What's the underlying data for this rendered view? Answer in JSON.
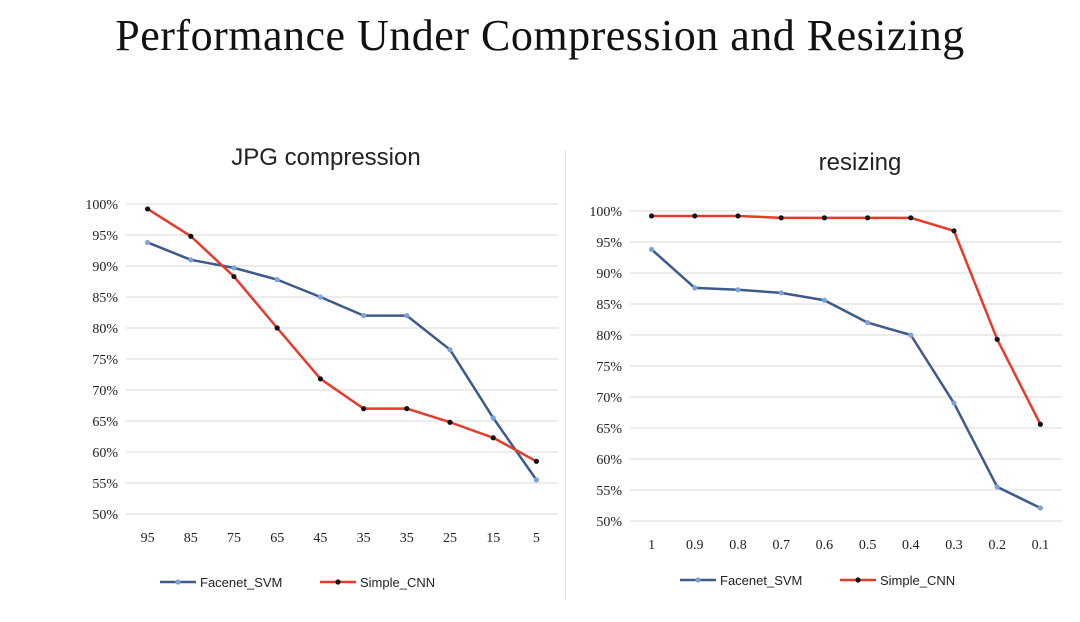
{
  "page": {
    "title": "Performance Under Compression and Resizing"
  },
  "chart_data": [
    {
      "type": "line",
      "title": "JPG compression",
      "xlabel": "",
      "ylabel": "",
      "categories": [
        "95",
        "85",
        "75",
        "65",
        "45",
        "35",
        "35",
        "25",
        "15",
        "5"
      ],
      "yticks": [
        "50%",
        "55%",
        "60%",
        "65%",
        "70%",
        "75%",
        "80%",
        "85%",
        "90%",
        "95%",
        "100%"
      ],
      "ylim": [
        50,
        100
      ],
      "grid": true,
      "legend": "bottom",
      "series": [
        {
          "name": "Facenet_SVM",
          "color": "#3d5a8a",
          "marker_color": "#7fa3d6",
          "values": [
            93.8,
            91.0,
            89.7,
            87.8,
            85.0,
            82.0,
            82.0,
            76.5,
            65.5,
            55.5
          ]
        },
        {
          "name": "Simple_CNN",
          "color": "#e8392a",
          "marker_color": "#111111",
          "values": [
            99.2,
            94.8,
            88.3,
            80.0,
            71.8,
            67.0,
            67.0,
            64.8,
            62.3,
            58.5
          ]
        }
      ]
    },
    {
      "type": "line",
      "title": "resizing",
      "xlabel": "",
      "ylabel": "",
      "categories": [
        "1",
        "0.9",
        "0.8",
        "0.7",
        "0.6",
        "0.5",
        "0.4",
        "0.3",
        "0.2",
        "0.1"
      ],
      "yticks": [
        "50%",
        "55%",
        "60%",
        "65%",
        "70%",
        "75%",
        "80%",
        "85%",
        "90%",
        "95%",
        "100%"
      ],
      "ylim": [
        50,
        100
      ],
      "grid": true,
      "legend": "bottom",
      "series": [
        {
          "name": "Facenet_SVM",
          "color": "#3d5a8a",
          "marker_color": "#7fa3d6",
          "values": [
            93.8,
            87.6,
            87.3,
            86.8,
            85.6,
            82.0,
            80.0,
            69.0,
            55.5,
            52.1
          ]
        },
        {
          "name": "Simple_CNN",
          "color": "#e8392a",
          "marker_color": "#111111",
          "values": [
            99.2,
            99.2,
            99.2,
            98.9,
            98.9,
            98.9,
            98.9,
            96.8,
            79.3,
            65.6
          ]
        }
      ]
    }
  ]
}
